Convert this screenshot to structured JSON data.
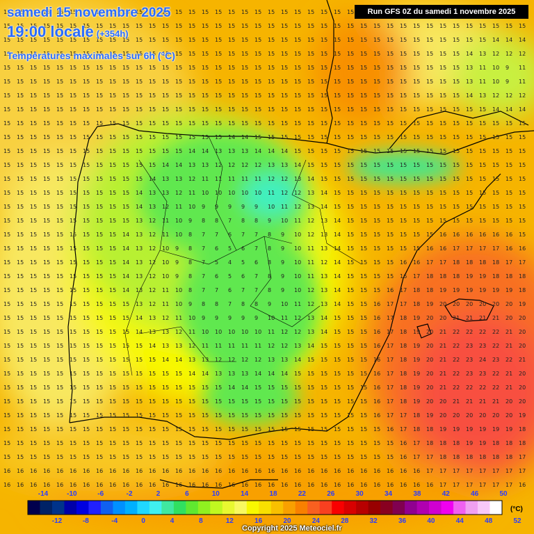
{
  "header": {
    "date": "samedi 15 novembre 2025",
    "time": "19:00 locale",
    "lead": "(+354h)",
    "parameter": "Températures maximales sur 6h (°C)",
    "run": "Run GFS 0Z du samedi 1 novembre 2025"
  },
  "legend": {
    "unit": "(°C)",
    "top_labels": [
      "-14",
      "-10",
      "-6",
      "-2",
      "2",
      "6",
      "10",
      "14",
      "18",
      "22",
      "26",
      "30",
      "34",
      "38",
      "42",
      "46",
      "50"
    ],
    "bottom_labels": [
      "-12",
      "-8",
      "-4",
      "0",
      "4",
      "8",
      "12",
      "16",
      "20",
      "24",
      "28",
      "32",
      "36",
      "40",
      "44",
      "48",
      "52"
    ],
    "colors": [
      "#00004d",
      "#002266",
      "#00338a",
      "#0000a8",
      "#0000e0",
      "#2020ff",
      "#1060f0",
      "#0090ff",
      "#00b0ff",
      "#20d8ff",
      "#40f0f0",
      "#40e8a0",
      "#30e060",
      "#60e830",
      "#90f020",
      "#c0f820",
      "#e8f830",
      "#f8f860",
      "#f8f800",
      "#f8e000",
      "#f8c000",
      "#f8a000",
      "#f88000",
      "#f86020",
      "#f84020",
      "#f80000",
      "#d80000",
      "#b80000",
      "#980000",
      "#880020",
      "#800050",
      "#900090",
      "#b000b0",
      "#d000d0",
      "#f000f0",
      "#f060f0",
      "#f0a0f0",
      "#f8c8f8",
      "#ffffff"
    ]
  },
  "copyright": "Copyright 2025 Meteociel.fr"
}
